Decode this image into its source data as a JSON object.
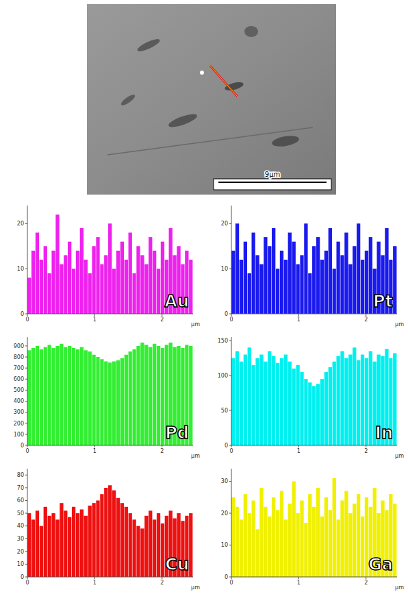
{
  "image": {
    "scale_bar": "9µm"
  },
  "chart_data": [
    {
      "type": "bar",
      "title": "Au",
      "color": "#ee22ee",
      "x_label": "µm",
      "xlim": [
        0,
        2.46
      ],
      "xticks": [
        0,
        1,
        2
      ],
      "ylim": [
        0,
        24
      ],
      "yticks": [
        0,
        10,
        20
      ],
      "x": [
        0.03,
        0.09,
        0.15,
        0.21,
        0.27,
        0.33,
        0.39,
        0.45,
        0.51,
        0.57,
        0.63,
        0.69,
        0.75,
        0.81,
        0.87,
        0.93,
        0.99,
        1.05,
        1.11,
        1.17,
        1.23,
        1.29,
        1.35,
        1.41,
        1.47,
        1.53,
        1.59,
        1.65,
        1.71,
        1.77,
        1.83,
        1.89,
        1.95,
        2.01,
        2.07,
        2.13,
        2.19,
        2.25,
        2.31,
        2.37,
        2.43
      ],
      "values": [
        8,
        14,
        18,
        12,
        15,
        9,
        14,
        22,
        11,
        13,
        16,
        10,
        14,
        19,
        12,
        9,
        15,
        17,
        11,
        13,
        20,
        10,
        14,
        16,
        12,
        18,
        9,
        15,
        13,
        11,
        17,
        14,
        10,
        16,
        12,
        19,
        13,
        15,
        11,
        14,
        12
      ]
    },
    {
      "type": "bar",
      "title": "Pt",
      "color": "#1a1aee",
      "x_label": "µm",
      "xlim": [
        0,
        2.46
      ],
      "xticks": [
        0,
        1,
        2
      ],
      "ylim": [
        0,
        24
      ],
      "yticks": [
        0,
        10,
        20
      ],
      "x": [
        0.03,
        0.09,
        0.15,
        0.21,
        0.27,
        0.33,
        0.39,
        0.45,
        0.51,
        0.57,
        0.63,
        0.69,
        0.75,
        0.81,
        0.87,
        0.93,
        0.99,
        1.05,
        1.11,
        1.17,
        1.23,
        1.29,
        1.35,
        1.41,
        1.47,
        1.53,
        1.59,
        1.65,
        1.71,
        1.77,
        1.83,
        1.89,
        1.95,
        2.01,
        2.07,
        2.13,
        2.19,
        2.25,
        2.31,
        2.37,
        2.43
      ],
      "values": [
        14,
        20,
        12,
        16,
        9,
        18,
        13,
        11,
        17,
        15,
        19,
        10,
        14,
        12,
        18,
        16,
        11,
        13,
        20,
        9,
        15,
        17,
        12,
        14,
        19,
        10,
        16,
        13,
        18,
        11,
        15,
        20,
        12,
        14,
        17,
        10,
        16,
        13,
        19,
        12,
        15
      ]
    },
    {
      "type": "bar",
      "title": "Pd",
      "color": "#33ee33",
      "x_label": "µm",
      "xlim": [
        0,
        2.46
      ],
      "xticks": [
        0,
        1,
        2
      ],
      "ylim": [
        0,
        980
      ],
      "yticks": [
        0,
        100,
        200,
        300,
        400,
        500,
        600,
        700,
        800,
        900
      ],
      "x": [
        0.03,
        0.09,
        0.15,
        0.21,
        0.27,
        0.33,
        0.39,
        0.45,
        0.51,
        0.57,
        0.63,
        0.69,
        0.75,
        0.81,
        0.87,
        0.93,
        0.99,
        1.05,
        1.11,
        1.17,
        1.23,
        1.29,
        1.35,
        1.41,
        1.47,
        1.53,
        1.59,
        1.65,
        1.71,
        1.77,
        1.83,
        1.89,
        1.95,
        2.01,
        2.07,
        2.13,
        2.19,
        2.25,
        2.31,
        2.37,
        2.43
      ],
      "values": [
        860,
        880,
        900,
        870,
        890,
        910,
        880,
        900,
        920,
        890,
        900,
        880,
        870,
        890,
        860,
        850,
        820,
        800,
        780,
        760,
        750,
        760,
        770,
        790,
        820,
        850,
        870,
        900,
        930,
        910,
        890,
        920,
        900,
        880,
        910,
        930,
        890,
        900,
        880,
        910,
        900
      ]
    },
    {
      "type": "bar",
      "title": "In",
      "color": "#00f0f0",
      "x_label": "µm",
      "xlim": [
        0,
        2.46
      ],
      "xticks": [
        0,
        1,
        2
      ],
      "ylim": [
        0,
        155
      ],
      "yticks": [
        0,
        50,
        100,
        150
      ],
      "x": [
        0.03,
        0.09,
        0.15,
        0.21,
        0.27,
        0.33,
        0.39,
        0.45,
        0.51,
        0.57,
        0.63,
        0.69,
        0.75,
        0.81,
        0.87,
        0.93,
        0.99,
        1.05,
        1.11,
        1.17,
        1.23,
        1.29,
        1.35,
        1.41,
        1.47,
        1.53,
        1.59,
        1.65,
        1.71,
        1.77,
        1.83,
        1.89,
        1.95,
        2.01,
        2.07,
        2.13,
        2.19,
        2.25,
        2.31,
        2.37,
        2.43
      ],
      "values": [
        125,
        135,
        120,
        130,
        140,
        115,
        125,
        130,
        120,
        135,
        128,
        118,
        125,
        130,
        120,
        110,
        115,
        105,
        95,
        90,
        85,
        88,
        95,
        105,
        112,
        120,
        128,
        135,
        125,
        130,
        140,
        122,
        130,
        125,
        135,
        120,
        130,
        128,
        138,
        125,
        132
      ]
    },
    {
      "type": "bar",
      "title": "Cu",
      "color": "#ee1111",
      "x_label": "µm",
      "xlim": [
        0,
        2.46
      ],
      "xticks": [
        0,
        1,
        2
      ],
      "ylim": [
        0,
        85
      ],
      "yticks": [
        0,
        10,
        20,
        30,
        40,
        50,
        60,
        70,
        80
      ],
      "x": [
        0.03,
        0.09,
        0.15,
        0.21,
        0.27,
        0.33,
        0.39,
        0.45,
        0.51,
        0.57,
        0.63,
        0.69,
        0.75,
        0.81,
        0.87,
        0.93,
        0.99,
        1.05,
        1.11,
        1.17,
        1.23,
        1.29,
        1.35,
        1.41,
        1.47,
        1.53,
        1.59,
        1.65,
        1.71,
        1.77,
        1.83,
        1.89,
        1.95,
        2.01,
        2.07,
        2.13,
        2.19,
        2.25,
        2.31,
        2.37,
        2.43
      ],
      "values": [
        50,
        45,
        52,
        40,
        55,
        48,
        50,
        45,
        58,
        52,
        47,
        55,
        50,
        53,
        48,
        56,
        58,
        60,
        65,
        70,
        72,
        68,
        62,
        58,
        55,
        50,
        45,
        40,
        38,
        48,
        52,
        45,
        50,
        42,
        48,
        52,
        46,
        50,
        44,
        48,
        50
      ]
    },
    {
      "type": "bar",
      "title": "Ga",
      "color": "#f0f000",
      "x_label": "µm",
      "xlim": [
        0,
        2.46
      ],
      "xticks": [
        0,
        1,
        2
      ],
      "ylim": [
        0,
        34
      ],
      "yticks": [
        0,
        10,
        20,
        30
      ],
      "x": [
        0.03,
        0.09,
        0.15,
        0.21,
        0.27,
        0.33,
        0.39,
        0.45,
        0.51,
        0.57,
        0.63,
        0.69,
        0.75,
        0.81,
        0.87,
        0.93,
        0.99,
        1.05,
        1.11,
        1.17,
        1.23,
        1.29,
        1.35,
        1.41,
        1.47,
        1.53,
        1.59,
        1.65,
        1.71,
        1.77,
        1.83,
        1.89,
        1.95,
        2.01,
        2.07,
        2.13,
        2.19,
        2.25,
        2.31,
        2.37,
        2.43
      ],
      "values": [
        25,
        22,
        18,
        26,
        20,
        24,
        15,
        28,
        22,
        19,
        25,
        21,
        27,
        18,
        23,
        30,
        20,
        24,
        17,
        26,
        22,
        28,
        19,
        25,
        21,
        31,
        18,
        24,
        27,
        20,
        23,
        26,
        19,
        25,
        22,
        28,
        20,
        24,
        21,
        26,
        23
      ]
    }
  ]
}
